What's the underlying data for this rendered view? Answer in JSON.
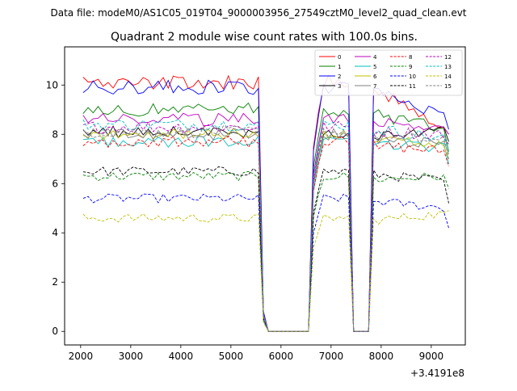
{
  "header": {
    "text": "Data file: modeM0/AS1C05_019T04_9000003956_27549cztM0_level2_quad_clean.evt"
  },
  "chart_data": {
    "type": "line",
    "title": "Quadrant 2 module wise count rates with 100.0s bins.",
    "xlabel": "",
    "ylabel": "",
    "x_offset_label": "+3.4191e8",
    "xlim": [
      1680,
      9680
    ],
    "ylim": [
      -0.55,
      11.55
    ],
    "xticks": [
      2000,
      3000,
      4000,
      5000,
      6000,
      7000,
      8000,
      9000
    ],
    "yticks": [
      0,
      2,
      4,
      6,
      8,
      10
    ],
    "grid": false,
    "legend_position": "top-right",
    "segments": [
      {
        "x0": 2050,
        "x1": 5550,
        "kind": "active"
      },
      {
        "x0": 5650,
        "x1": 5650,
        "kind": "value",
        "factor": 0.08
      },
      {
        "x0": 5750,
        "x1": 6550,
        "kind": "zero"
      },
      {
        "x0": 6650,
        "x1": 6750,
        "kind": "ramp",
        "factors": [
          0.78,
          0.93
        ]
      },
      {
        "x0": 6850,
        "x1": 7350,
        "kind": "active"
      },
      {
        "x0": 7450,
        "x1": 7750,
        "kind": "zero"
      },
      {
        "x0": 7850,
        "x1": 9350,
        "kind": "active"
      }
    ],
    "series": [
      {
        "name": "0",
        "color": "#ff0000",
        "dash": "solid",
        "level": 10.1,
        "end": 7.9,
        "last": 8.0
      },
      {
        "name": "1",
        "color": "#008000",
        "dash": "solid",
        "level": 9.0,
        "end": 8.2,
        "last": 7.3
      },
      {
        "name": "2",
        "color": "#0000ff",
        "dash": "solid",
        "level": 9.9,
        "end": 8.6,
        "last": 8.2
      },
      {
        "name": "3",
        "color": "#000000",
        "dash": "solid",
        "level": 8.1,
        "end": 8.2,
        "last": 7.7
      },
      {
        "name": "4",
        "color": "#bf00bf",
        "dash": "solid",
        "level": 8.6,
        "end": 8.3,
        "last": 8.0
      },
      {
        "name": "5",
        "color": "#00bfbf",
        "dash": "solid",
        "level": 7.7,
        "end": 7.5,
        "last": 6.8
      },
      {
        "name": "6",
        "color": "#bfbf00",
        "dash": "solid",
        "level": 8.0,
        "end": 7.5,
        "last": 7.0
      },
      {
        "name": "7",
        "color": "#808080",
        "dash": "solid",
        "level": 8.0,
        "end": 7.6,
        "last": 7.2
      },
      {
        "name": "8",
        "color": "#ff0000",
        "dash": "dashed",
        "level": 7.7,
        "end": 7.3,
        "last": 6.7
      },
      {
        "name": "9",
        "color": "#008000",
        "dash": "dashed",
        "level": 6.3,
        "end": 6.3,
        "last": 5.8
      },
      {
        "name": "10",
        "color": "#0000ff",
        "dash": "dashed",
        "level": 5.4,
        "end": 5.0,
        "last": 4.2
      },
      {
        "name": "11",
        "color": "#000000",
        "dash": "dashed",
        "level": 6.5,
        "end": 6.1,
        "last": 5.2
      },
      {
        "name": "12",
        "color": "#bf00bf",
        "dash": "dashed",
        "level": 8.3,
        "end": 8.0,
        "last": 7.6
      },
      {
        "name": "13",
        "color": "#00bfbf",
        "dash": "dashed",
        "level": 8.4,
        "end": 7.8,
        "last": 7.3
      },
      {
        "name": "14",
        "color": "#bfbf00",
        "dash": "dashed",
        "level": 4.6,
        "end": 4.8,
        "last": 4.9
      },
      {
        "name": "15",
        "color": "#808080",
        "dash": "dashed",
        "level": 8.1,
        "end": 7.7,
        "last": 7.0
      }
    ]
  }
}
